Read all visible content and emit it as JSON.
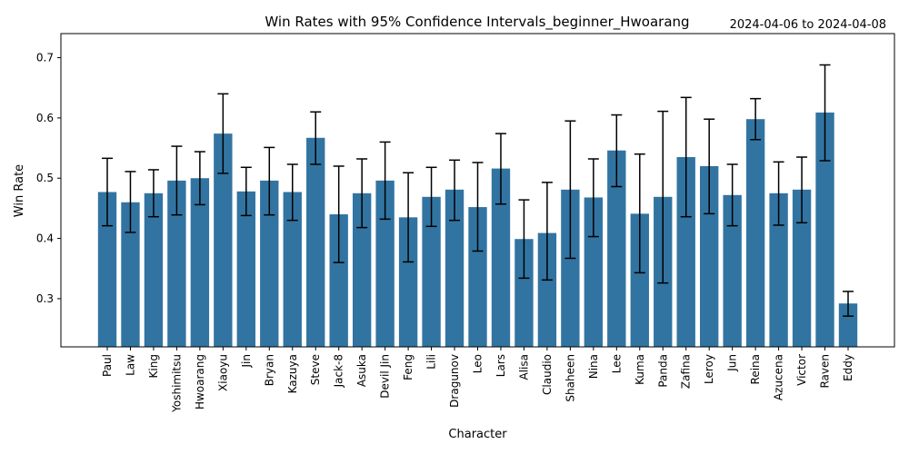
{
  "chart_data": {
    "type": "bar",
    "title": "Win Rates with 95% Confidence Intervals_beginner_Hwoarang",
    "date_range": "2024-04-06 to 2024-04-08",
    "xlabel": "Character",
    "ylabel": "Win Rate",
    "ylim": [
      0.22,
      0.74
    ],
    "yticks": [
      0.3,
      0.4,
      0.5,
      0.6,
      0.7
    ],
    "bar_color": "#3274a1",
    "error_bar_color": "#000000",
    "grid": false,
    "categories": [
      "Paul",
      "Law",
      "King",
      "Yoshimitsu",
      "Hwoarang",
      "Xiaoyu",
      "Jin",
      "Bryan",
      "Kazuya",
      "Steve",
      "Jack-8",
      "Asuka",
      "Devil Jin",
      "Feng",
      "Lili",
      "Dragunov",
      "Leo",
      "Lars",
      "Alisa",
      "Claudio",
      "Shaheen",
      "Nina",
      "Lee",
      "Kuma",
      "Panda",
      "Zafina",
      "Leroy",
      "Jun",
      "Reina",
      "Azucena",
      "Victor",
      "Raven",
      "Eddy"
    ],
    "values": [
      0.477,
      0.46,
      0.475,
      0.496,
      0.5,
      0.574,
      0.478,
      0.496,
      0.477,
      0.567,
      0.44,
      0.475,
      0.496,
      0.435,
      0.469,
      0.481,
      0.452,
      0.516,
      0.399,
      0.409,
      0.481,
      0.468,
      0.546,
      0.441,
      0.469,
      0.535,
      0.52,
      0.472,
      0.598,
      0.475,
      0.481,
      0.609,
      0.292
    ],
    "ci_lower": [
      0.421,
      0.41,
      0.436,
      0.439,
      0.456,
      0.508,
      0.438,
      0.439,
      0.43,
      0.523,
      0.36,
      0.418,
      0.432,
      0.361,
      0.42,
      0.43,
      0.379,
      0.457,
      0.334,
      0.331,
      0.367,
      0.403,
      0.486,
      0.343,
      0.326,
      0.436,
      0.441,
      0.421,
      0.564,
      0.422,
      0.426,
      0.529,
      0.271
    ],
    "ci_upper": [
      0.533,
      0.511,
      0.514,
      0.553,
      0.544,
      0.64,
      0.518,
      0.551,
      0.523,
      0.61,
      0.52,
      0.532,
      0.56,
      0.509,
      0.518,
      0.53,
      0.526,
      0.574,
      0.464,
      0.493,
      0.595,
      0.532,
      0.605,
      0.54,
      0.611,
      0.634,
      0.598,
      0.523,
      0.632,
      0.527,
      0.535,
      0.688,
      0.312
    ]
  }
}
